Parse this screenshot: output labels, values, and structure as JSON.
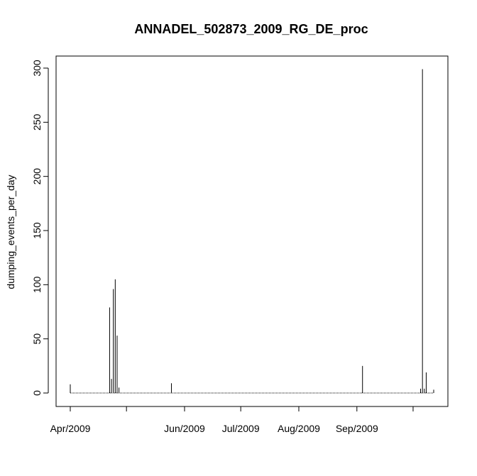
{
  "chart_data": {
    "type": "bar",
    "title": "ANNADEL_502873_2009_RG_DE_proc",
    "xlabel": "",
    "ylabel": "dumping_events_per_day",
    "ylim": [
      0,
      300
    ],
    "y_ticks": [
      0,
      50,
      100,
      150,
      200,
      250,
      300
    ],
    "x_ticks": [
      "Apr/2009",
      "",
      "Jun/2009",
      "Jul/2009",
      "Aug/2009",
      "Sep/2009",
      ""
    ],
    "x_tick_dates": [
      "2009-04-01",
      "2009-05-01",
      "2009-06-01",
      "2009-07-01",
      "2009-08-01",
      "2009-09-01",
      "2009-10-01"
    ],
    "x_start": "2009-04-01",
    "x_end": "2009-10-12",
    "points": [
      {
        "x": "2009-04-01",
        "y": 8
      },
      {
        "x": "2009-04-22",
        "y": 79
      },
      {
        "x": "2009-04-23",
        "y": 13
      },
      {
        "x": "2009-04-24",
        "y": 96
      },
      {
        "x": "2009-04-25",
        "y": 105
      },
      {
        "x": "2009-04-26",
        "y": 53
      },
      {
        "x": "2009-04-27",
        "y": 5
      },
      {
        "x": "2009-05-25",
        "y": 9
      },
      {
        "x": "2009-09-04",
        "y": 25
      },
      {
        "x": "2009-10-05",
        "y": 4
      },
      {
        "x": "2009-10-06",
        "y": 299
      },
      {
        "x": "2009-10-07",
        "y": 4
      },
      {
        "x": "2009-10-08",
        "y": 19
      },
      {
        "x": "2009-10-12",
        "y": 3
      }
    ],
    "grid": false
  }
}
